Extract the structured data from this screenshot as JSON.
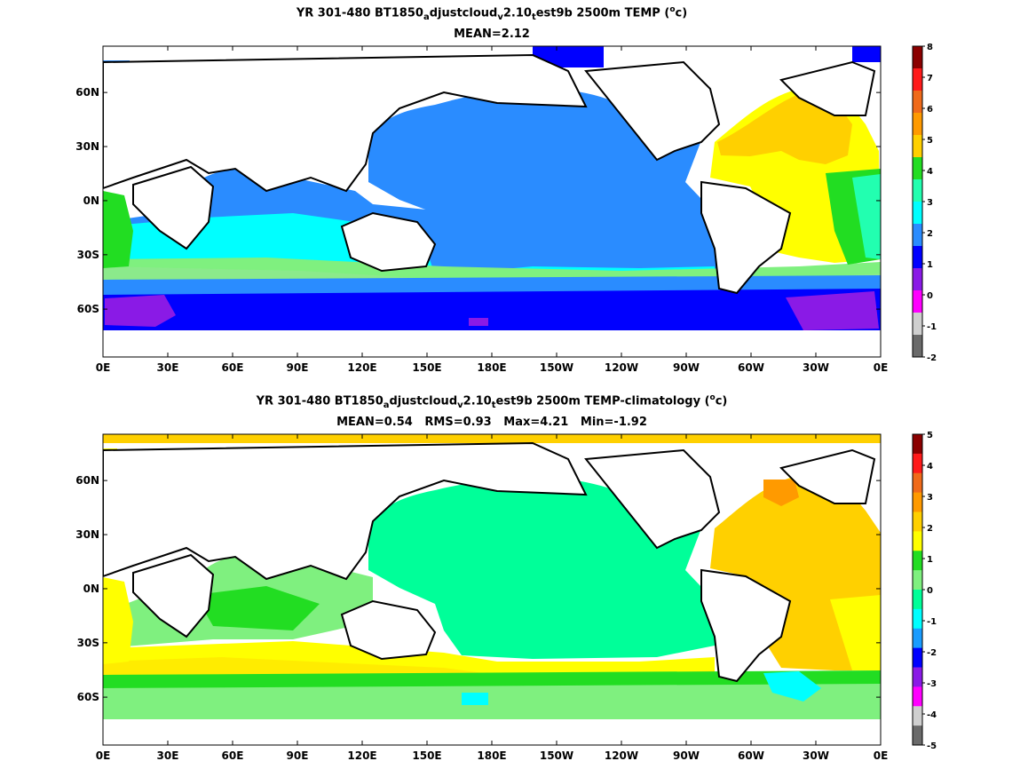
{
  "panels": [
    {
      "title_parts": [
        "YR 301-480 BT1850",
        "a",
        "djustcloud",
        "v",
        "2.10",
        "t",
        "est9b 2500m TEMP (",
        "o",
        "c)"
      ],
      "stats": "MEAN=2.12",
      "colorbar": {
        "labels": [
          "8",
          "7",
          "6",
          "5",
          "4",
          "3",
          "2",
          "1",
          "0",
          "-1",
          "-2"
        ],
        "colors": [
          "#8b0000",
          "#ff1a1a",
          "#f06a1a",
          "#ff9a00",
          "#ffd000",
          "#22dd22",
          "#22ffb0",
          "#00ffff",
          "#2a8cff",
          "#0000ff",
          "#8a1ae6",
          "#ff00ff",
          "#cfcfcf",
          "#6a6a6a"
        ]
      }
    },
    {
      "title_parts": [
        "YR 301-480 BT1850",
        "a",
        "djustcloud",
        "v",
        "2.10",
        "t",
        "est9b 2500m TEMP-climatology (",
        "o",
        "c)"
      ],
      "stats": "MEAN=0.54   RMS=0.93   Max=4.21   Min=-1.92",
      "colorbar": {
        "labels": [
          "5",
          "4",
          "3",
          "2",
          "1",
          "0",
          "-1",
          "-2",
          "-3",
          "-4",
          "-5"
        ],
        "colors": [
          "#8b0000",
          "#ff1a1a",
          "#f06a1a",
          "#ff9a00",
          "#ffd000",
          "#ffff00",
          "#22dd22",
          "#7ff07f",
          "#00ff99",
          "#00ffff",
          "#1a9cff",
          "#0000ff",
          "#8a1ae6",
          "#ff00ff",
          "#cfcfcf",
          "#6a6a6a"
        ]
      }
    }
  ],
  "map_axes": {
    "x_labels": [
      "0E",
      "30E",
      "60E",
      "90E",
      "120E",
      "150E",
      "180E",
      "150W",
      "120W",
      "90W",
      "60W",
      "30W",
      "0E"
    ],
    "y_labels": [
      "60N",
      "30N",
      "0N",
      "30S",
      "60S"
    ]
  }
}
